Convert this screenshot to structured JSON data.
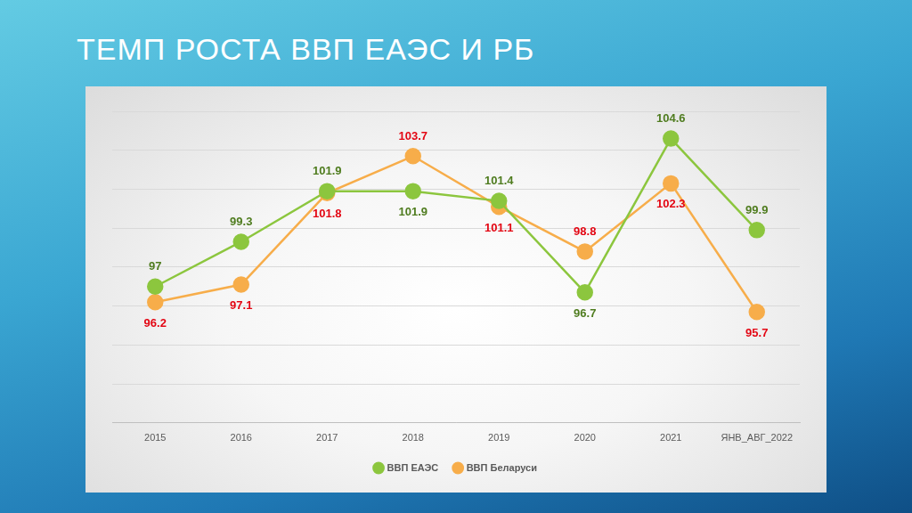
{
  "chart_data": {
    "type": "line",
    "title": "ТЕМП РОСТА ВВП ЕАЭС И РБ",
    "categories": [
      "2015",
      "2016",
      "2017",
      "2018",
      "2019",
      "2020",
      "2021",
      "ЯНВ_АВГ_2022"
    ],
    "series": [
      {
        "name": "ВВП ЕАЭС",
        "color": "#8cc63e",
        "marker": "circle",
        "values": [
          97,
          99.3,
          101.9,
          101.9,
          101.4,
          96.7,
          104.6,
          99.9
        ]
      },
      {
        "name": "ВВП Беларуси",
        "color": "#f7ad4a",
        "marker": "circle",
        "values": [
          96.2,
          97.1,
          101.8,
          103.7,
          101.1,
          98.8,
          102.3,
          95.7
        ]
      }
    ],
    "ylim": [
      90,
      106
    ],
    "yticks": [
      90,
      92,
      94,
      96,
      98,
      100,
      102,
      104,
      106
    ],
    "grid": true,
    "legend": "bottom",
    "data_labels": true,
    "tick_labels": "x"
  }
}
